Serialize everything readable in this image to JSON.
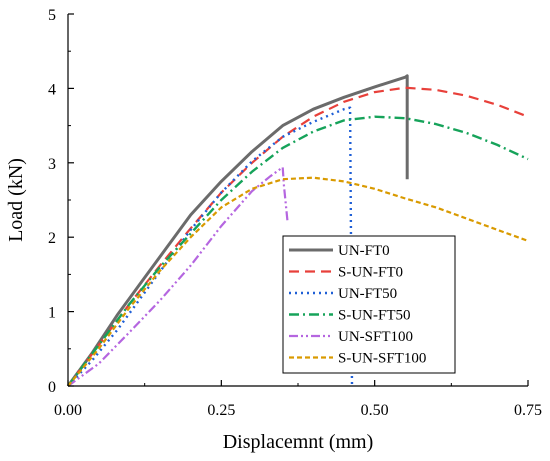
{
  "chart_data": {
    "type": "line",
    "xlabel": "Displacemnt (mm)",
    "ylabel": "Load (kN)",
    "xlim": [
      0,
      0.75
    ],
    "ylim": [
      0,
      5
    ],
    "x_ticks": [
      "0.00",
      "0.25",
      "0.50",
      "0.75"
    ],
    "y_ticks": [
      "0",
      "1",
      "2",
      "3",
      "4",
      "5"
    ],
    "grid": false,
    "legend_position": "bottom-right",
    "series": [
      {
        "name": "UN-FT0",
        "color": "#6b6b6b",
        "dash": "solid",
        "points": [
          [
            0,
            0
          ],
          [
            0.04,
            0.45
          ],
          [
            0.08,
            0.95
          ],
          [
            0.12,
            1.4
          ],
          [
            0.16,
            1.85
          ],
          [
            0.2,
            2.3
          ],
          [
            0.25,
            2.75
          ],
          [
            0.3,
            3.15
          ],
          [
            0.35,
            3.5
          ],
          [
            0.4,
            3.72
          ],
          [
            0.45,
            3.88
          ],
          [
            0.5,
            4.02
          ],
          [
            0.55,
            4.15
          ],
          [
            0.553,
            4.17
          ],
          [
            0.553,
            2.78
          ]
        ]
      },
      {
        "name": "S-UN-FT0",
        "color": "#e8403a",
        "dash": "long-dash",
        "points": [
          [
            0,
            0
          ],
          [
            0.05,
            0.55
          ],
          [
            0.1,
            1.1
          ],
          [
            0.15,
            1.62
          ],
          [
            0.2,
            2.12
          ],
          [
            0.25,
            2.6
          ],
          [
            0.3,
            3.0
          ],
          [
            0.35,
            3.35
          ],
          [
            0.4,
            3.62
          ],
          [
            0.45,
            3.82
          ],
          [
            0.5,
            3.95
          ],
          [
            0.55,
            4.01
          ],
          [
            0.6,
            3.98
          ],
          [
            0.65,
            3.9
          ],
          [
            0.7,
            3.78
          ],
          [
            0.75,
            3.62
          ]
        ]
      },
      {
        "name": "UN-FT50",
        "color": "#1f5fd6",
        "dash": "dot",
        "points": [
          [
            0,
            0
          ],
          [
            0.04,
            0.35
          ],
          [
            0.08,
            0.75
          ],
          [
            0.12,
            1.2
          ],
          [
            0.16,
            1.65
          ],
          [
            0.2,
            2.1
          ],
          [
            0.25,
            2.6
          ],
          [
            0.3,
            3.02
          ],
          [
            0.35,
            3.35
          ],
          [
            0.4,
            3.55
          ],
          [
            0.45,
            3.72
          ],
          [
            0.46,
            3.74
          ],
          [
            0.463,
            0.0
          ]
        ]
      },
      {
        "name": "S-UN-FT50",
        "color": "#16a35a",
        "dash": "dash-dot",
        "points": [
          [
            0,
            0
          ],
          [
            0.05,
            0.55
          ],
          [
            0.1,
            1.1
          ],
          [
            0.15,
            1.6
          ],
          [
            0.2,
            2.05
          ],
          [
            0.25,
            2.5
          ],
          [
            0.3,
            2.88
          ],
          [
            0.35,
            3.2
          ],
          [
            0.4,
            3.42
          ],
          [
            0.45,
            3.57
          ],
          [
            0.5,
            3.62
          ],
          [
            0.55,
            3.6
          ],
          [
            0.6,
            3.52
          ],
          [
            0.65,
            3.4
          ],
          [
            0.7,
            3.24
          ],
          [
            0.75,
            3.05
          ]
        ]
      },
      {
        "name": "UN-SFT100",
        "color": "#b566e0",
        "dash": "dash-dot-dot",
        "points": [
          [
            0,
            0
          ],
          [
            0.05,
            0.3
          ],
          [
            0.1,
            0.72
          ],
          [
            0.15,
            1.15
          ],
          [
            0.2,
            1.62
          ],
          [
            0.25,
            2.15
          ],
          [
            0.3,
            2.62
          ],
          [
            0.33,
            2.82
          ],
          [
            0.35,
            2.94
          ],
          [
            0.352,
            2.7
          ],
          [
            0.358,
            2.2
          ]
        ]
      },
      {
        "name": "S-UN-SFT100",
        "color": "#d99a00",
        "dash": "short-dash",
        "points": [
          [
            0,
            0
          ],
          [
            0.05,
            0.5
          ],
          [
            0.1,
            1.05
          ],
          [
            0.15,
            1.55
          ],
          [
            0.2,
            2.0
          ],
          [
            0.25,
            2.4
          ],
          [
            0.3,
            2.65
          ],
          [
            0.35,
            2.78
          ],
          [
            0.4,
            2.8
          ],
          [
            0.45,
            2.75
          ],
          [
            0.5,
            2.65
          ],
          [
            0.55,
            2.52
          ],
          [
            0.6,
            2.4
          ],
          [
            0.65,
            2.25
          ],
          [
            0.7,
            2.1
          ],
          [
            0.75,
            1.95
          ]
        ]
      }
    ]
  }
}
